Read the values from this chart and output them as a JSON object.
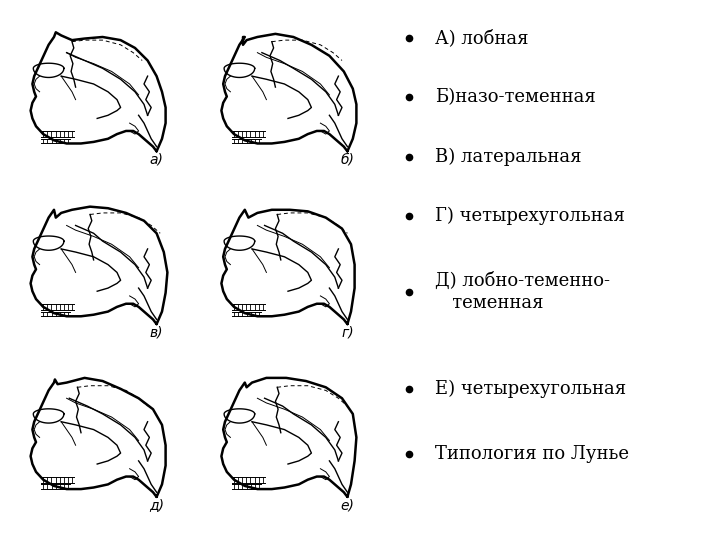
{
  "labels": [
    "а)",
    "б)",
    "в)",
    "г)",
    "д)",
    "е)"
  ],
  "bullet_items": [
    "А) лобная",
    "Б)назо-теменная",
    "В) латеральная",
    "Г) четырехугольная",
    "Д) лобно-теменно-\nтеменная",
    "Е) четырехугольная",
    "Типология по Лунье"
  ],
  "background_color": "#ffffff",
  "text_color": "#000000",
  "label_fontsize": 10,
  "bullet_fontsize": 13,
  "fig_width": 7.2,
  "fig_height": 5.4
}
